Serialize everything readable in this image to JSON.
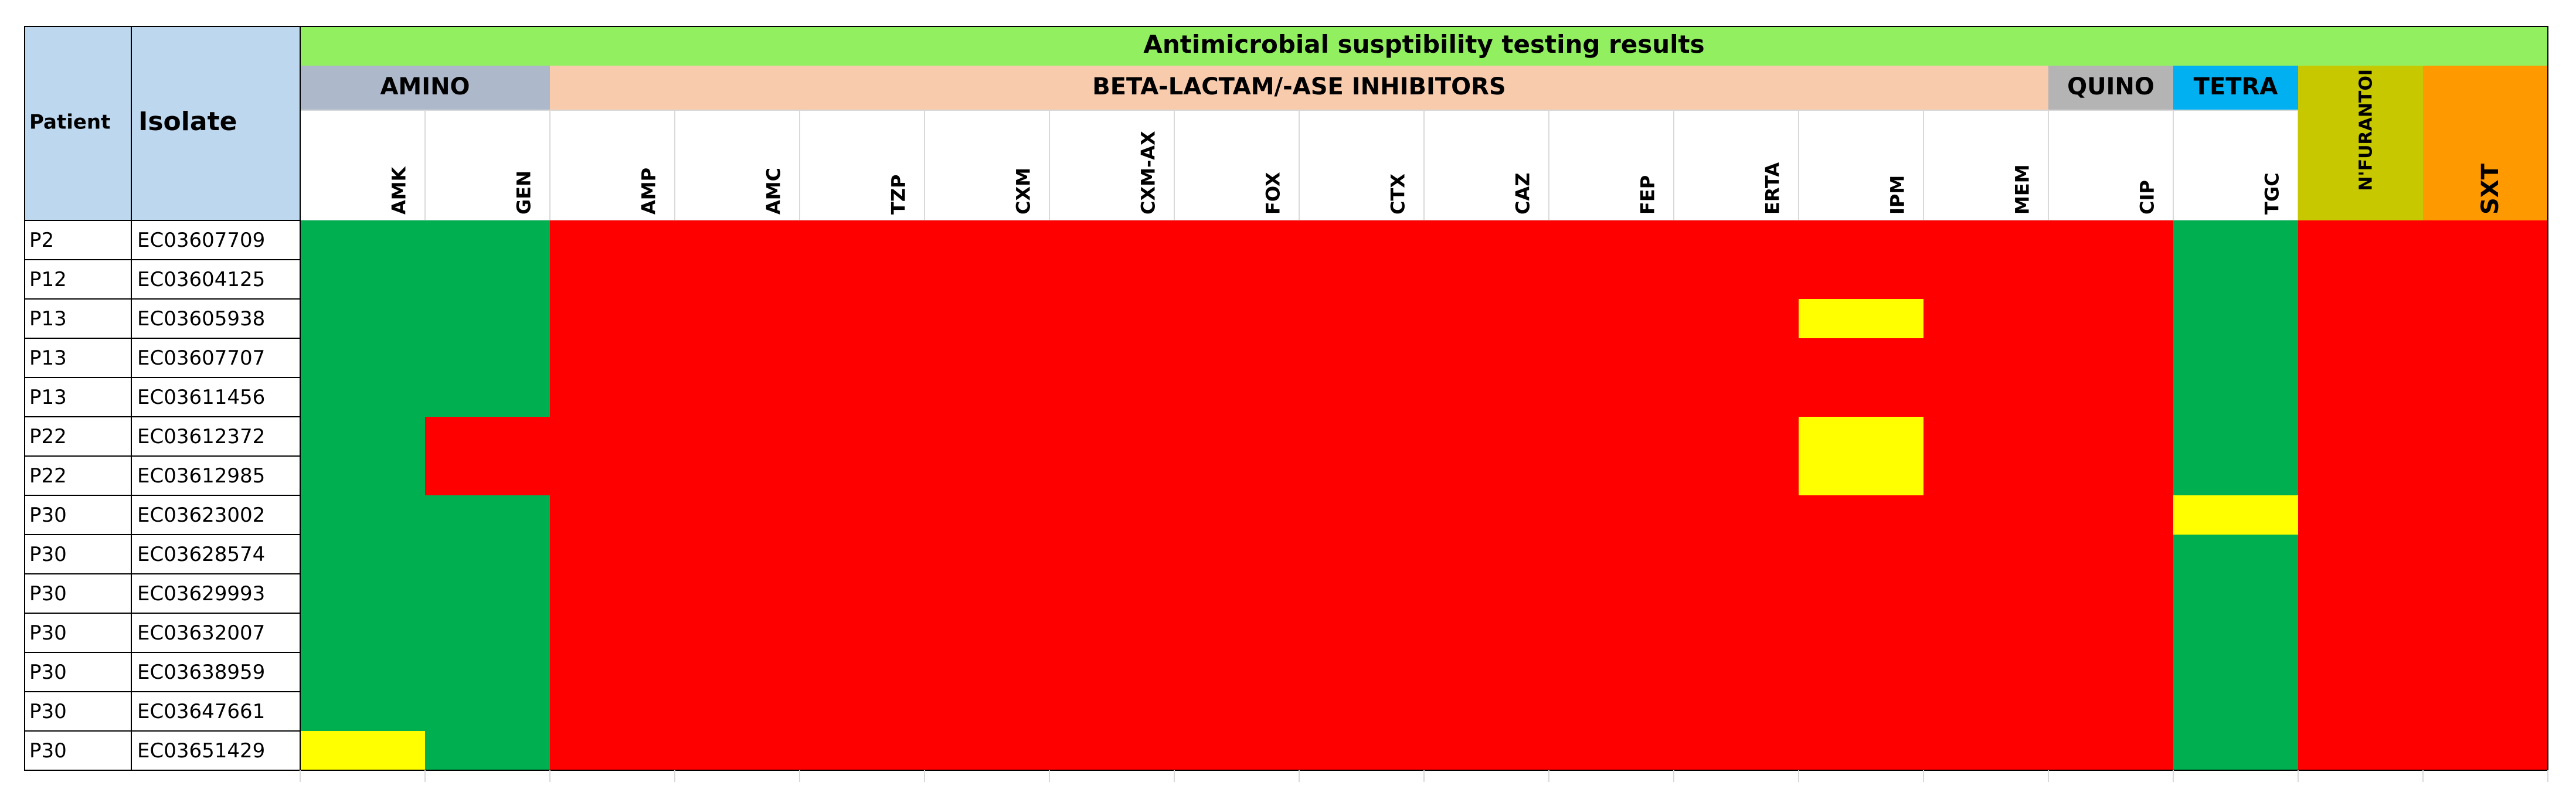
{
  "title": "Antimicrobial susptibility testing results",
  "headers": {
    "patient": "Patient",
    "isolate": "Isolate"
  },
  "column_groups": [
    {
      "label": "AMINO",
      "color": "#adb9ca",
      "columns": [
        "AMK",
        "GEN"
      ]
    },
    {
      "label": "BETA-LACTAM/-ASE INHIBITORS",
      "color": "#f8cbad",
      "columns": [
        "AMP",
        "AMC",
        "TZP",
        "CXM",
        "CXM-AX",
        "FOX",
        "CTX",
        "CAZ",
        "FEP",
        "ERTA",
        "IPM",
        "MEM"
      ]
    },
    {
      "label": "QUINO",
      "color": "#b4b4b4",
      "columns": [
        "CIP"
      ]
    },
    {
      "label": "TETRA",
      "color": "#00b0f0",
      "columns": [
        "TGC"
      ]
    },
    {
      "color": "#c8c800",
      "columns": [
        "N'FURANTOI"
      ]
    },
    {
      "color": "#ff9900",
      "columns": [
        "SXT"
      ]
    }
  ],
  "rows": [
    {
      "patient": "P2",
      "isolate": "EC03607709",
      "colors": [
        "#00b050",
        "#00b050",
        "#ff0000",
        "#ff0000",
        "#ff0000",
        "#ff0000",
        "#ff0000",
        "#ff0000",
        "#ff0000",
        "#ff0000",
        "#ff0000",
        "#ff0000",
        "#ff0000",
        "#ff0000",
        "#ff0000",
        "#00b050",
        "#ff0000",
        "#ff0000"
      ]
    },
    {
      "patient": "P12",
      "isolate": "EC03604125",
      "colors": [
        "#00b050",
        "#00b050",
        "#ff0000",
        "#ff0000",
        "#ff0000",
        "#ff0000",
        "#ff0000",
        "#ff0000",
        "#ff0000",
        "#ff0000",
        "#ff0000",
        "#ff0000",
        "#ff0000",
        "#ff0000",
        "#ff0000",
        "#00b050",
        "#ff0000",
        "#ff0000"
      ]
    },
    {
      "patient": "P13",
      "isolate": "EC03605938",
      "colors": [
        "#00b050",
        "#00b050",
        "#ff0000",
        "#ff0000",
        "#ff0000",
        "#ff0000",
        "#ff0000",
        "#ff0000",
        "#ff0000",
        "#ff0000",
        "#ff0000",
        "#ff0000",
        "#ffff00",
        "#ff0000",
        "#ff0000",
        "#00b050",
        "#ff0000",
        "#ff0000"
      ]
    },
    {
      "patient": "P13",
      "isolate": "EC03607707",
      "colors": [
        "#00b050",
        "#00b050",
        "#ff0000",
        "#ff0000",
        "#ff0000",
        "#ff0000",
        "#ff0000",
        "#ff0000",
        "#ff0000",
        "#ff0000",
        "#ff0000",
        "#ff0000",
        "#ff0000",
        "#ff0000",
        "#ff0000",
        "#00b050",
        "#ff0000",
        "#ff0000"
      ]
    },
    {
      "patient": "P13",
      "isolate": "EC03611456",
      "colors": [
        "#00b050",
        "#00b050",
        "#ff0000",
        "#ff0000",
        "#ff0000",
        "#ff0000",
        "#ff0000",
        "#ff0000",
        "#ff0000",
        "#ff0000",
        "#ff0000",
        "#ff0000",
        "#ff0000",
        "#ff0000",
        "#ff0000",
        "#00b050",
        "#ff0000",
        "#ff0000"
      ]
    },
    {
      "patient": "P22",
      "isolate": "EC03612372",
      "colors": [
        "#00b050",
        "#ff0000",
        "#ff0000",
        "#ff0000",
        "#ff0000",
        "#ff0000",
        "#ff0000",
        "#ff0000",
        "#ff0000",
        "#ff0000",
        "#ff0000",
        "#ff0000",
        "#ffff00",
        "#ff0000",
        "#ff0000",
        "#00b050",
        "#ff0000",
        "#ff0000"
      ]
    },
    {
      "patient": "P22",
      "isolate": "EC03612985",
      "colors": [
        "#00b050",
        "#ff0000",
        "#ff0000",
        "#ff0000",
        "#ff0000",
        "#ff0000",
        "#ff0000",
        "#ff0000",
        "#ff0000",
        "#ff0000",
        "#ff0000",
        "#ff0000",
        "#ffff00",
        "#ff0000",
        "#ff0000",
        "#00b050",
        "#ff0000",
        "#ff0000"
      ]
    },
    {
      "patient": "P30",
      "isolate": "EC03623002",
      "colors": [
        "#00b050",
        "#00b050",
        "#ff0000",
        "#ff0000",
        "#ff0000",
        "#ff0000",
        "#ff0000",
        "#ff0000",
        "#ff0000",
        "#ff0000",
        "#ff0000",
        "#ff0000",
        "#ff0000",
        "#ff0000",
        "#ff0000",
        "#ffff00",
        "#ff0000",
        "#ff0000"
      ]
    },
    {
      "patient": "P30",
      "isolate": "EC03628574",
      "colors": [
        "#00b050",
        "#00b050",
        "#ff0000",
        "#ff0000",
        "#ff0000",
        "#ff0000",
        "#ff0000",
        "#ff0000",
        "#ff0000",
        "#ff0000",
        "#ff0000",
        "#ff0000",
        "#ff0000",
        "#ff0000",
        "#ff0000",
        "#00b050",
        "#ff0000",
        "#ff0000"
      ]
    },
    {
      "patient": "P30",
      "isolate": "EC03629993",
      "colors": [
        "#00b050",
        "#00b050",
        "#ff0000",
        "#ff0000",
        "#ff0000",
        "#ff0000",
        "#ff0000",
        "#ff0000",
        "#ff0000",
        "#ff0000",
        "#ff0000",
        "#ff0000",
        "#ff0000",
        "#ff0000",
        "#ff0000",
        "#00b050",
        "#ff0000",
        "#ff0000"
      ]
    },
    {
      "patient": "P30",
      "isolate": "EC03632007",
      "colors": [
        "#00b050",
        "#00b050",
        "#ff0000",
        "#ff0000",
        "#ff0000",
        "#ff0000",
        "#ff0000",
        "#ff0000",
        "#ff0000",
        "#ff0000",
        "#ff0000",
        "#ff0000",
        "#ff0000",
        "#ff0000",
        "#ff0000",
        "#00b050",
        "#ff0000",
        "#ff0000"
      ]
    },
    {
      "patient": "P30",
      "isolate": "EC03638959",
      "colors": [
        "#00b050",
        "#00b050",
        "#ff0000",
        "#ff0000",
        "#ff0000",
        "#ff0000",
        "#ff0000",
        "#ff0000",
        "#ff0000",
        "#ff0000",
        "#ff0000",
        "#ff0000",
        "#ff0000",
        "#ff0000",
        "#ff0000",
        "#00b050",
        "#ff0000",
        "#ff0000"
      ]
    },
    {
      "patient": "P30",
      "isolate": "EC03647661",
      "colors": [
        "#00b050",
        "#00b050",
        "#ff0000",
        "#ff0000",
        "#ff0000",
        "#ff0000",
        "#ff0000",
        "#ff0000",
        "#ff0000",
        "#ff0000",
        "#ff0000",
        "#ff0000",
        "#ff0000",
        "#ff0000",
        "#ff0000",
        "#00b050",
        "#ff0000",
        "#ff0000"
      ]
    },
    {
      "patient": "P30",
      "isolate": "EC03651429",
      "colors": [
        "#ffff00",
        "#00b050",
        "#ff0000",
        "#ff0000",
        "#ff0000",
        "#ff0000",
        "#ff0000",
        "#ff0000",
        "#ff0000",
        "#ff0000",
        "#ff0000",
        "#ff0000",
        "#ff0000",
        "#ff0000",
        "#ff0000",
        "#00b050",
        "#ff0000",
        "#ff0000"
      ]
    }
  ],
  "title_color": "#92f060",
  "header_color": "#bdd7ee"
}
